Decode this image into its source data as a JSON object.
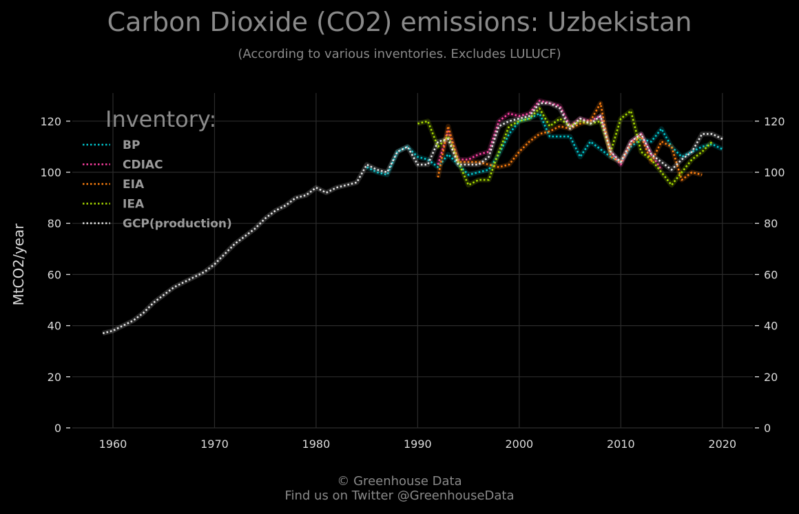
{
  "chart_data": {
    "type": "line",
    "title": "Carbon Dioxide (CO2) emissions: Uzbekistan",
    "subtitle": "(According to various inventories. Excludes LULUCF)",
    "xlabel": "",
    "ylabel": "MtCO2/year",
    "xlim": [
      1956,
      2023
    ],
    "ylim": [
      0,
      131
    ],
    "x_ticks": [
      1960,
      1970,
      1980,
      1990,
      2000,
      2010,
      2020
    ],
    "y_ticks": [
      0,
      20,
      40,
      60,
      80,
      100,
      120
    ],
    "grid": true,
    "legend_title": "Inventory:",
    "legend_position": "top-left",
    "line_style": "dotted",
    "series": [
      {
        "name": "BP",
        "color": "#00c8d0",
        "x": [
          1985,
          1986,
          1987,
          1988,
          1989,
          1990,
          1991,
          1992,
          1993,
          1994,
          1995,
          1996,
          1997,
          1998,
          1999,
          2000,
          2001,
          2002,
          2003,
          2004,
          2005,
          2006,
          2007,
          2008,
          2009,
          2010,
          2011,
          2012,
          2013,
          2014,
          2015,
          2016,
          2017,
          2018,
          2019,
          2020
        ],
        "y": [
          102,
          100,
          99,
          108,
          110,
          106,
          105,
          102,
          107,
          103,
          99,
          100,
          101,
          107,
          115,
          120,
          121,
          123,
          114,
          114,
          114,
          106,
          112,
          109,
          106,
          104,
          110,
          113,
          112,
          117,
          110,
          106,
          108,
          110,
          111,
          109
        ]
      },
      {
        "name": "CDIAC",
        "color": "#ff3fa4",
        "x": [
          1992,
          1993,
          1994,
          1995,
          1996,
          1997,
          1998,
          1999,
          2000,
          2001,
          2002,
          2003,
          2004,
          2005,
          2006,
          2007,
          2008,
          2009,
          2010,
          2011,
          2012,
          2013,
          2014
        ],
        "y": [
          103,
          116,
          105,
          105,
          107,
          108,
          120,
          123,
          122,
          123,
          128,
          127,
          126,
          118,
          121,
          120,
          122,
          108,
          103,
          112,
          115,
          107,
          101
        ]
      },
      {
        "name": "EIA",
        "color": "#ff7f0e",
        "x": [
          1992,
          1993,
          1994,
          1995,
          1996,
          1997,
          1998,
          1999,
          2000,
          2001,
          2002,
          2003,
          2004,
          2005,
          2006,
          2007,
          2008,
          2009,
          2010,
          2011,
          2012,
          2013,
          2014,
          2015,
          2016,
          2017,
          2018
        ],
        "y": [
          98,
          118,
          104,
          104,
          104,
          103,
          102,
          103,
          108,
          112,
          115,
          116,
          118,
          117,
          119,
          120,
          127,
          106,
          104,
          111,
          114,
          104,
          112,
          110,
          97,
          100,
          99
        ]
      },
      {
        "name": "IEA",
        "color": "#aadd00",
        "x": [
          1990,
          1991,
          1992,
          1993,
          1994,
          1995,
          1996,
          1997,
          1998,
          1999,
          2000,
          2001,
          2002,
          2003,
          2004,
          2005,
          2006,
          2007,
          2008,
          2009,
          2010,
          2011,
          2012,
          2013,
          2014,
          2015,
          2016,
          2017,
          2018,
          2019
        ],
        "y": [
          119,
          120,
          110,
          114,
          104,
          95,
          97,
          97,
          108,
          118,
          120,
          121,
          125,
          118,
          121,
          118,
          120,
          119,
          120,
          108,
          121,
          124,
          108,
          105,
          100,
          95,
          100,
          105,
          108,
          112
        ]
      },
      {
        "name": "GCP(production)",
        "color": "#e6e6e6",
        "x": [
          1959,
          1960,
          1961,
          1962,
          1963,
          1964,
          1965,
          1966,
          1967,
          1968,
          1969,
          1970,
          1971,
          1972,
          1973,
          1974,
          1975,
          1976,
          1977,
          1978,
          1979,
          1980,
          1981,
          1982,
          1983,
          1984,
          1985,
          1986,
          1987,
          1988,
          1989,
          1990,
          1991,
          1992,
          1993,
          1994,
          1995,
          1996,
          1997,
          1998,
          1999,
          2000,
          2001,
          2002,
          2003,
          2004,
          2005,
          2006,
          2007,
          2008,
          2009,
          2010,
          2011,
          2012,
          2013,
          2014,
          2015,
          2016,
          2017,
          2018,
          2019,
          2020
        ],
        "y": [
          37,
          38,
          40,
          42,
          45,
          49,
          52,
          55,
          57,
          59,
          61,
          64,
          68,
          72,
          75,
          78,
          82,
          85,
          87,
          90,
          91,
          94,
          92,
          94,
          95,
          96,
          103,
          101,
          100,
          108,
          110,
          103,
          103,
          112,
          113,
          103,
          103,
          103,
          106,
          118,
          120,
          121,
          122,
          127,
          127,
          125,
          117,
          121,
          119,
          122,
          108,
          104,
          112,
          115,
          107,
          104,
          101,
          105,
          108,
          115,
          115,
          113
        ]
      }
    ]
  },
  "footer": {
    "line1": "© Greenhouse Data",
    "line2": "Find us on Twitter @GreenhouseData"
  }
}
